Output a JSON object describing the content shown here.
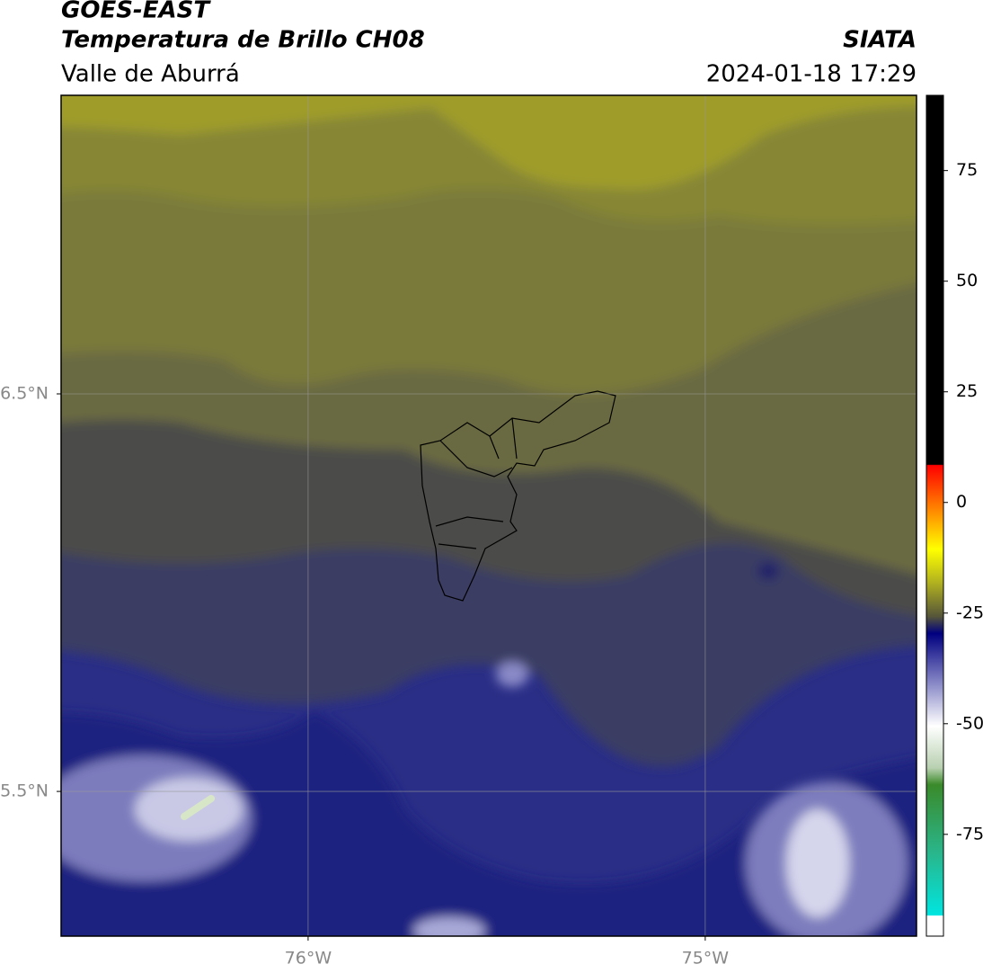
{
  "chart_data": {
    "type": "contour",
    "title": "GOES-EAST",
    "subtitle": "Temperatura de Brillo CH08",
    "region": "Valle de Aburrá",
    "source": "SIATA",
    "datetime": "2024-01-18 17:29",
    "xlim": [
      -76.622,
      -74.468
    ],
    "ylim": [
      5.136,
      7.251
    ],
    "xticks": [
      {
        "value": -76,
        "label": "76°W"
      },
      {
        "value": -75,
        "label": "75°W"
      }
    ],
    "yticks": [
      {
        "value": 5.5,
        "label": "5.5°N"
      },
      {
        "value": 6.5,
        "label": "6.5°N"
      }
    ],
    "grid": true,
    "colorbar": {
      "lim": [
        -98,
        92
      ],
      "ticks": [
        -75,
        -50,
        -25,
        0,
        25,
        50,
        75
      ]
    }
  }
}
